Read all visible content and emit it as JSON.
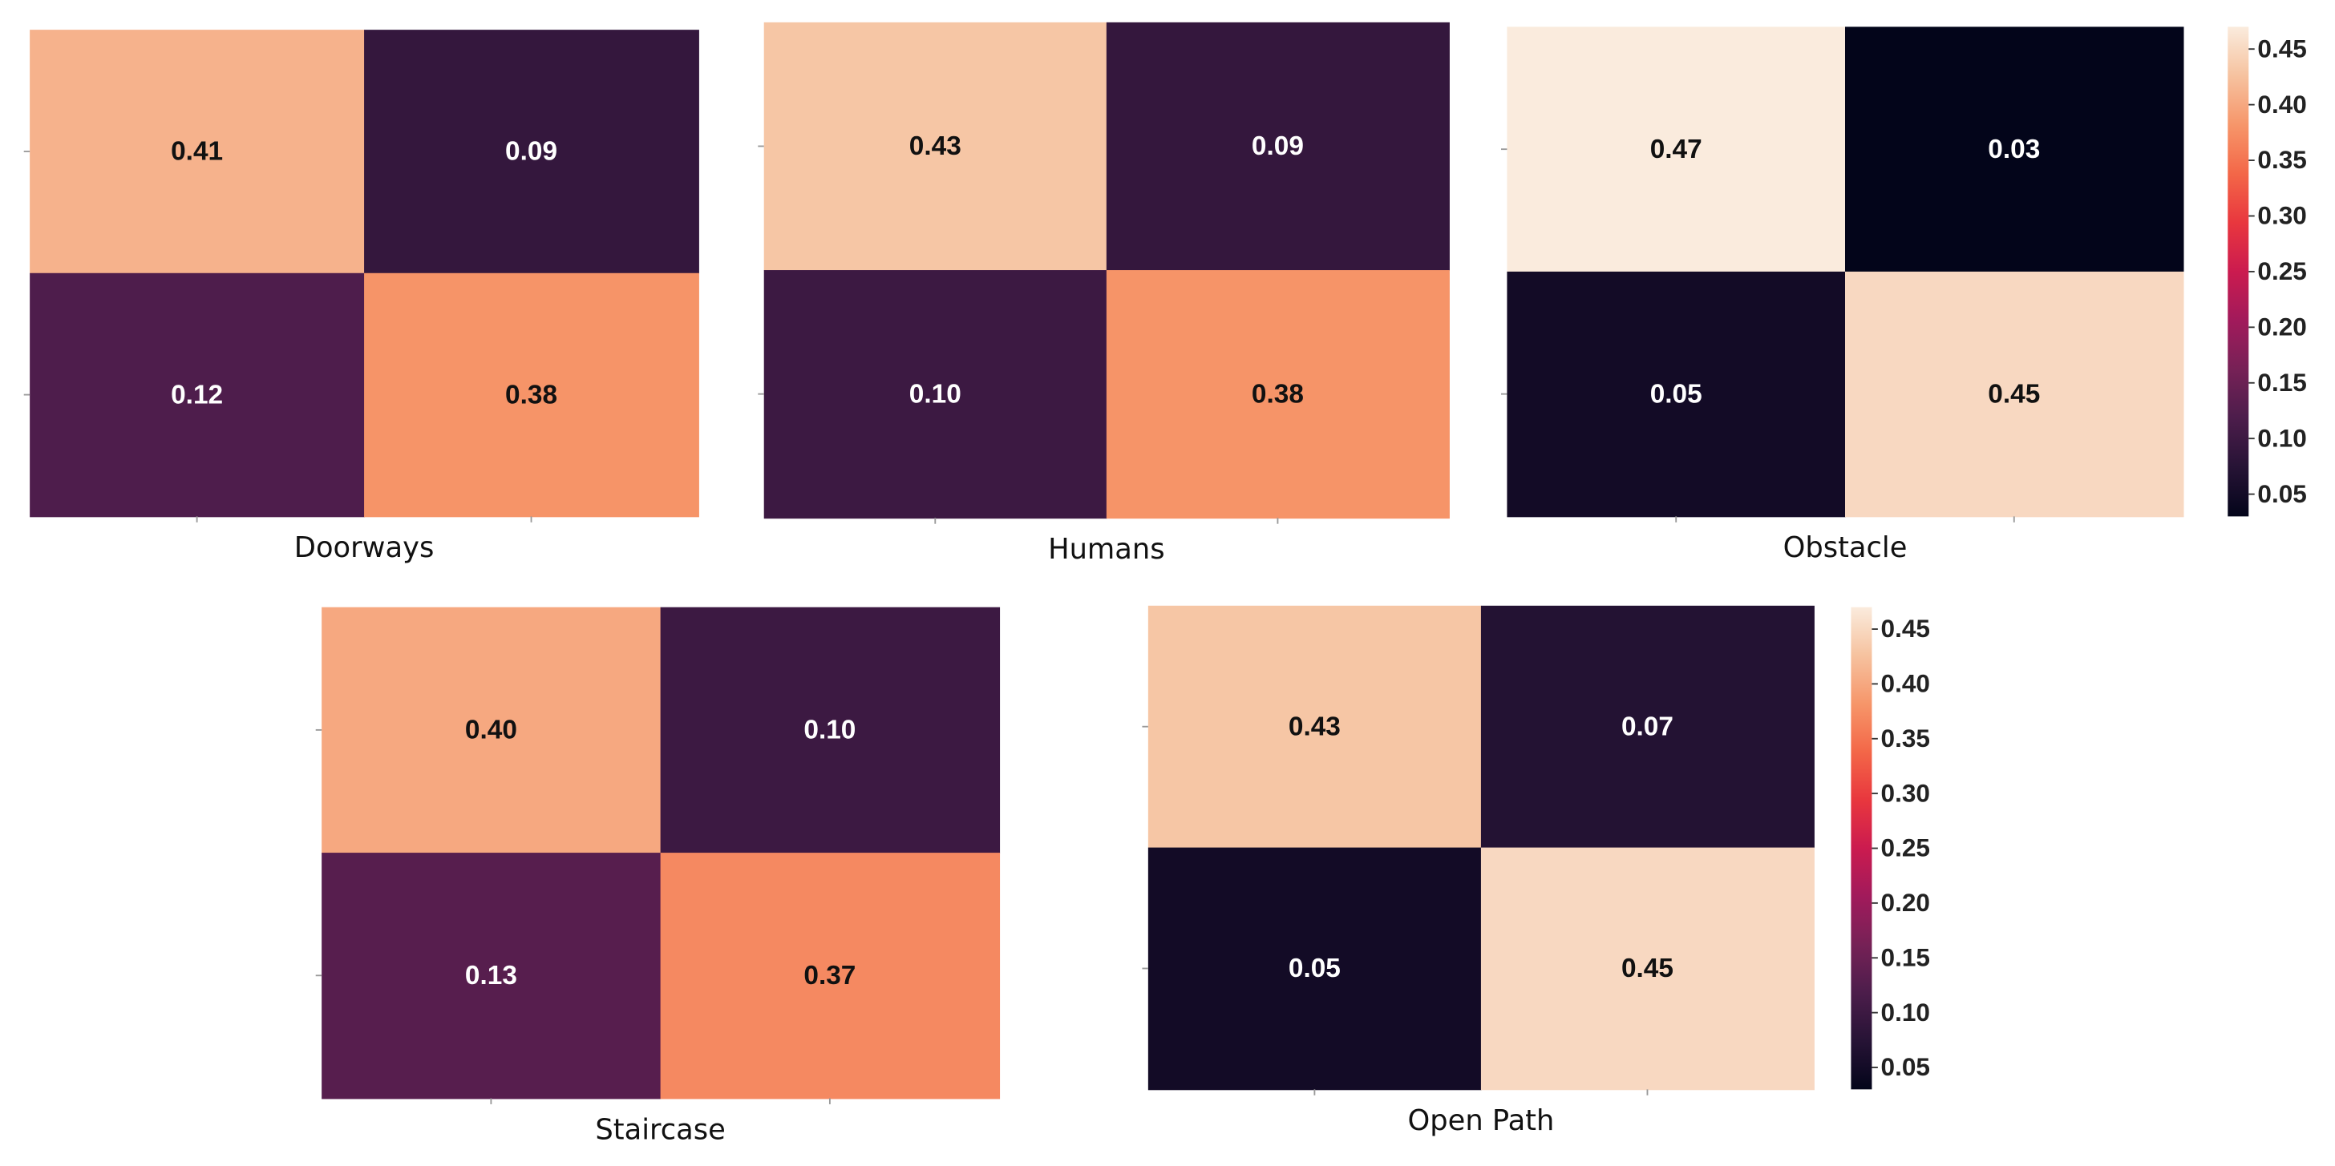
{
  "chart_data": [
    {
      "type": "heatmap",
      "xlabel": "Doorways",
      "colormap": "rocket",
      "zlim": [
        0.03,
        0.47
      ],
      "values": [
        [
          0.41,
          0.09
        ],
        [
          0.12,
          0.38
        ]
      ],
      "value_labels": [
        [
          "0.41",
          "0.09"
        ],
        [
          "0.12",
          "0.38"
        ]
      ]
    },
    {
      "type": "heatmap",
      "xlabel": "Humans",
      "colormap": "rocket",
      "zlim": [
        0.03,
        0.47
      ],
      "values": [
        [
          0.43,
          0.09
        ],
        [
          0.1,
          0.38
        ]
      ],
      "value_labels": [
        [
          "0.43",
          "0.09"
        ],
        [
          "0.10",
          "0.38"
        ]
      ]
    },
    {
      "type": "heatmap",
      "xlabel": "Obstacle",
      "colormap": "rocket",
      "zlim": [
        0.03,
        0.47
      ],
      "values": [
        [
          0.47,
          0.03
        ],
        [
          0.05,
          0.45
        ]
      ],
      "value_labels": [
        [
          "0.47",
          "0.03"
        ],
        [
          "0.05",
          "0.45"
        ]
      ],
      "colorbar": true,
      "zticks": [
        0.05,
        {
          "value": 0.1,
          "label": "0.10"
        },
        0.15,
        {
          "value": 0.2,
          "label": "0.20"
        },
        0.25,
        {
          "value": 0.3,
          "label": "0.30"
        },
        0.35,
        {
          "value": 0.4,
          "label": "0.40"
        },
        0.45
      ]
    },
    {
      "type": "heatmap",
      "xlabel": "Staircase",
      "colormap": "rocket",
      "zlim": [
        0.03,
        0.47
      ],
      "values": [
        [
          0.4,
          0.1
        ],
        [
          0.13,
          0.37
        ]
      ],
      "value_labels": [
        [
          "0.40",
          "0.10"
        ],
        [
          "0.13",
          "0.37"
        ]
      ]
    },
    {
      "type": "heatmap",
      "xlabel": "Open Path",
      "colormap": "rocket",
      "zlim": [
        0.03,
        0.47
      ],
      "values": [
        [
          0.43,
          0.07
        ],
        [
          0.05,
          0.45
        ]
      ],
      "value_labels": [
        [
          "0.43",
          "0.07"
        ],
        [
          "0.05",
          "0.45"
        ]
      ],
      "colorbar": true,
      "zticks": [
        0.05,
        {
          "value": 0.1,
          "label": "0.10"
        },
        0.15,
        {
          "value": 0.2,
          "label": "0.20"
        },
        0.25,
        {
          "value": 0.3,
          "label": "0.30"
        },
        0.35,
        {
          "value": 0.4,
          "label": "0.40"
        },
        0.45
      ]
    }
  ]
}
